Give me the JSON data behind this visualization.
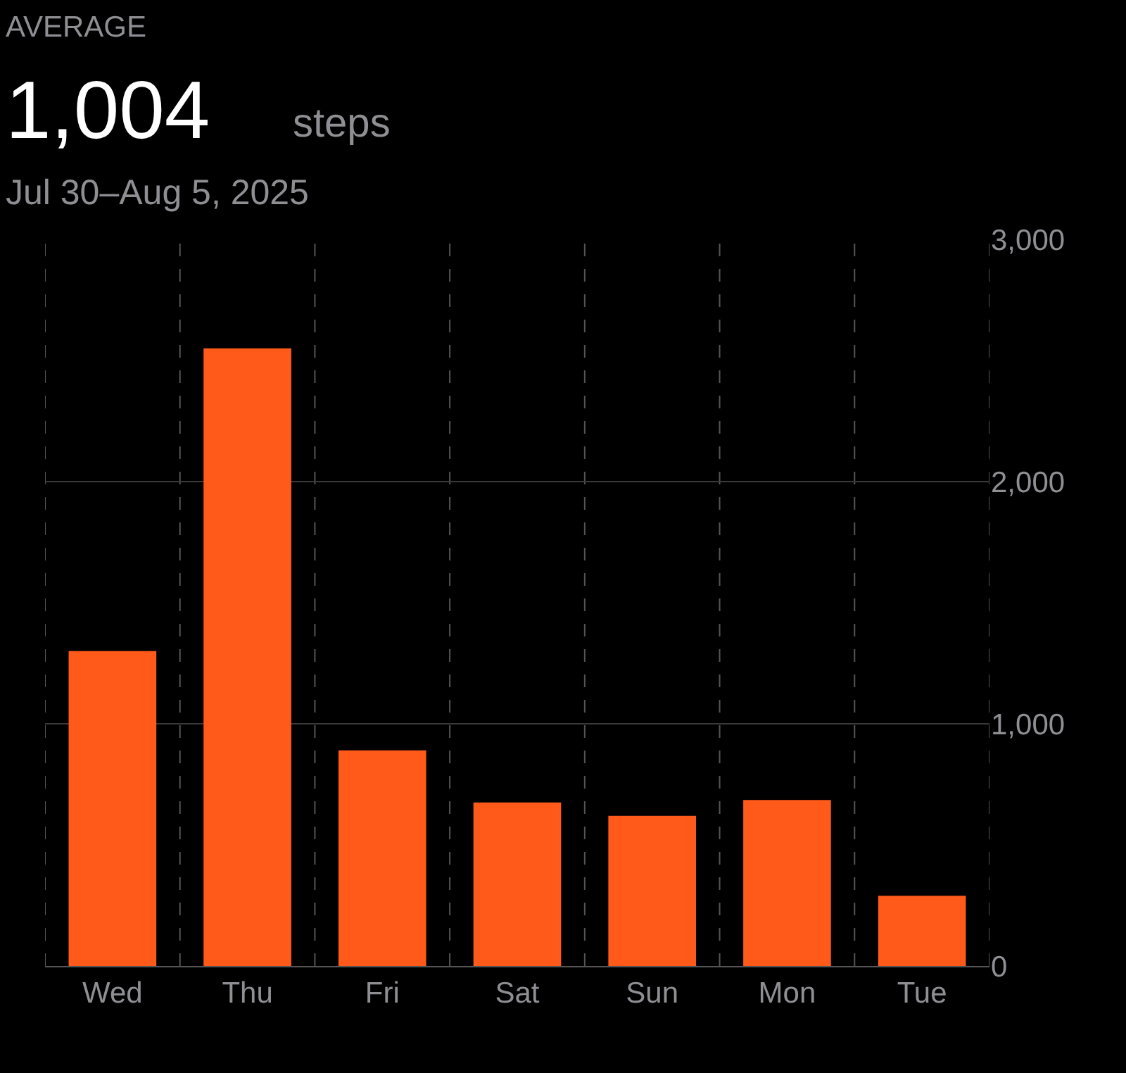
{
  "chart_data": {
    "type": "bar",
    "title": "AVERAGE",
    "subtitle": "Jul 30–Aug 5, 2025",
    "annotations": [
      "1,004",
      "steps"
    ],
    "categories": [
      "Wed",
      "Thu",
      "Fri",
      "Sat",
      "Sun",
      "Mon",
      "Tue"
    ],
    "values": [
      1300,
      2550,
      890,
      675,
      620,
      685,
      290
    ],
    "color": "#ff5a1a",
    "ylim": [
      0,
      3000
    ],
    "yticks": [
      {
        "value": 0,
        "label": "0"
      },
      {
        "value": 1000,
        "label": "1,000"
      },
      {
        "value": 2000,
        "label": "2,000"
      },
      {
        "value": 3000,
        "label": "3,000"
      }
    ],
    "grid": true
  }
}
